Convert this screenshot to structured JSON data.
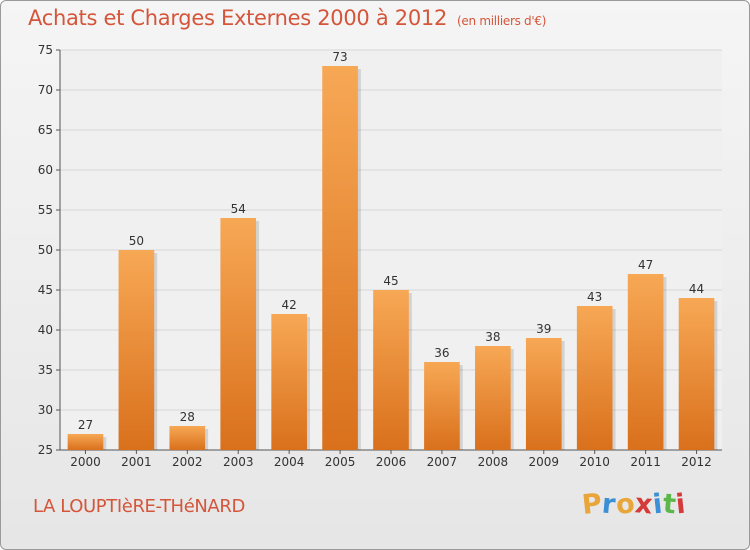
{
  "chart_data": {
    "type": "bar",
    "title": "Achats et Charges Externes 2000 à 2012",
    "subtitle": "(en milliers d'€)",
    "categories": [
      "2000",
      "2001",
      "2002",
      "2003",
      "2004",
      "2005",
      "2006",
      "2007",
      "2008",
      "2009",
      "2010",
      "2011",
      "2012"
    ],
    "values": [
      27,
      50,
      28,
      54,
      42,
      73,
      45,
      36,
      38,
      39,
      43,
      47,
      44
    ],
    "ylim": [
      25,
      75
    ],
    "yticks": [
      25,
      30,
      35,
      40,
      45,
      50,
      55,
      60,
      65,
      70,
      75
    ],
    "xlabel": "",
    "ylabel": "",
    "grid": true,
    "bar_color": "#f0923a"
  },
  "location": "LA LOUPTIèRE-THéNARD",
  "logo": {
    "letters": [
      "P",
      "r",
      "o",
      "x",
      "i",
      "t",
      "i"
    ],
    "colors": [
      "#e8a63a",
      "#3b8fd4",
      "#e8a63a",
      "#d43a3a",
      "#3b8fd4",
      "#5ab84a",
      "#d43a3a"
    ]
  }
}
